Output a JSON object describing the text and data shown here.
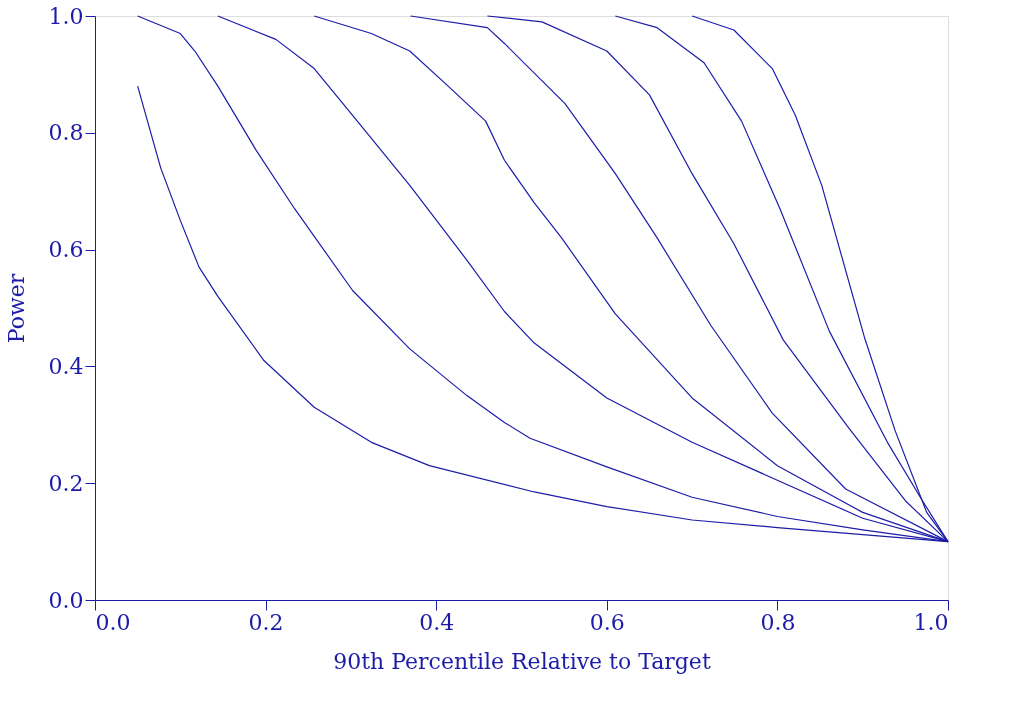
{
  "chart_data": {
    "type": "line",
    "xlabel": "90th Percentile Relative to Target",
    "ylabel": "Power",
    "xlim": [
      0,
      1
    ],
    "ylim": [
      0,
      1
    ],
    "xticks": [
      {
        "value": 0,
        "label": "0.0"
      },
      {
        "value": 0.2,
        "label": "0.2"
      },
      {
        "value": 0.4,
        "label": "0.4"
      },
      {
        "value": 0.6,
        "label": "0.6"
      },
      {
        "value": 0.8,
        "label": "0.8"
      },
      {
        "value": 1,
        "label": "1.0"
      }
    ],
    "yticks": [
      {
        "value": 0,
        "label": "0.0"
      },
      {
        "value": 0.2,
        "label": "0.2"
      },
      {
        "value": 0.4,
        "label": "0.4"
      },
      {
        "value": 0.6,
        "label": "0.6"
      },
      {
        "value": 0.8,
        "label": "0.8"
      },
      {
        "value": 1,
        "label": "1.0"
      }
    ],
    "grid": false,
    "legend": false,
    "marker": "none",
    "line_style": "solid",
    "series": [
      {
        "color": "#1c1ca8",
        "x": [
          0.05,
          0.077,
          0.1,
          0.122,
          0.144,
          0.198,
          0.257,
          0.324,
          0.392,
          0.515,
          0.6,
          0.7,
          0.8,
          0.9,
          1.0
        ],
        "values": [
          0.88,
          0.74,
          0.65,
          0.57,
          0.52,
          0.41,
          0.33,
          0.27,
          0.23,
          0.185,
          0.16,
          0.137,
          0.124,
          0.112,
          0.1
        ]
      },
      {
        "color": "#1c1ca8",
        "x": [
          0.05,
          0.1,
          0.117,
          0.144,
          0.189,
          0.234,
          0.302,
          0.369,
          0.436,
          0.48,
          0.51,
          0.6,
          0.7,
          0.8,
          0.9,
          1.0
        ],
        "values": [
          1.0,
          0.97,
          0.94,
          0.88,
          0.77,
          0.67,
          0.53,
          0.43,
          0.35,
          0.304,
          0.277,
          0.228,
          0.176,
          0.143,
          0.12,
          0.1
        ]
      },
      {
        "color": "#1c1ca8",
        "x": [
          0.144,
          0.212,
          0.257,
          0.302,
          0.369,
          0.437,
          0.48,
          0.515,
          0.6,
          0.7,
          0.794,
          0.9,
          1.0
        ],
        "values": [
          1.0,
          0.96,
          0.91,
          0.83,
          0.71,
          0.58,
          0.494,
          0.44,
          0.346,
          0.27,
          0.209,
          0.14,
          0.1
        ]
      },
      {
        "color": "#1c1ca8",
        "x": [
          0.257,
          0.324,
          0.369,
          0.414,
          0.458,
          0.48,
          0.515,
          0.547,
          0.61,
          0.7,
          0.8,
          0.9,
          1.0
        ],
        "values": [
          1.0,
          0.97,
          0.94,
          0.88,
          0.82,
          0.753,
          0.68,
          0.62,
          0.49,
          0.346,
          0.23,
          0.15,
          0.1
        ]
      },
      {
        "color": "#1c1ca8",
        "x": [
          0.37,
          0.46,
          0.48,
          0.551,
          0.61,
          0.659,
          0.722,
          0.794,
          0.88,
          1.0
        ],
        "values": [
          1.0,
          0.98,
          0.953,
          0.85,
          0.73,
          0.62,
          0.47,
          0.32,
          0.19,
          0.1
        ]
      },
      {
        "color": "#1c1ca8",
        "x": [
          0.46,
          0.524,
          0.6,
          0.65,
          0.7,
          0.749,
          0.807,
          0.884,
          0.95,
          1.0
        ],
        "values": [
          1.0,
          0.99,
          0.94,
          0.865,
          0.73,
          0.61,
          0.445,
          0.294,
          0.17,
          0.1
        ]
      },
      {
        "color": "#1c1ca8",
        "x": [
          0.61,
          0.659,
          0.714,
          0.758,
          0.803,
          0.861,
          0.929,
          0.97,
          1.0
        ],
        "values": [
          1.0,
          0.98,
          0.92,
          0.82,
          0.67,
          0.46,
          0.27,
          0.17,
          0.1
        ]
      },
      {
        "color": "#1c1ca8",
        "x": [
          0.7,
          0.749,
          0.794,
          0.821,
          0.852,
          0.902,
          0.938,
          0.975,
          1.0
        ],
        "values": [
          1.0,
          0.976,
          0.91,
          0.83,
          0.71,
          0.45,
          0.29,
          0.15,
          0.1
        ]
      }
    ]
  }
}
